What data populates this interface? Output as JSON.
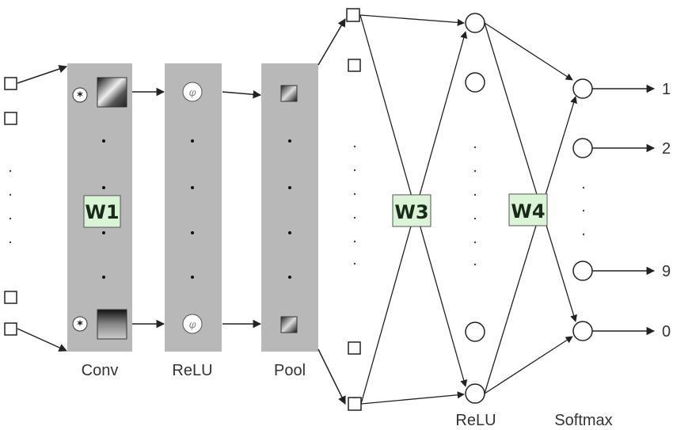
{
  "labels": {
    "conv": "Conv",
    "relu_column": "ReLU",
    "pool": "Pool",
    "relu_hidden": "ReLU",
    "softmax": "Softmax",
    "w1": "W1",
    "w3": "W3",
    "w4": "W4",
    "out_1": "1",
    "out_2": "2",
    "out_9": "9",
    "out_0": "0",
    "conv_operator": "*",
    "activation_symbol": "φ"
  },
  "colors": {
    "column_fill": "#b8b8b8",
    "weight_box_fill": "#d9f5d6",
    "line": "#222222"
  }
}
